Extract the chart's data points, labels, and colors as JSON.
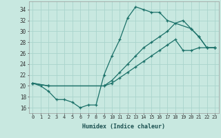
{
  "xlabel": "Humidex (Indice chaleur)",
  "bg_color": "#c8e8e0",
  "grid_color": "#aad4cc",
  "line_color": "#1a7068",
  "xlim": [
    -0.5,
    23.5
  ],
  "ylim": [
    15.0,
    35.5
  ],
  "xticks": [
    0,
    1,
    2,
    3,
    4,
    5,
    6,
    7,
    8,
    9,
    10,
    11,
    12,
    13,
    14,
    15,
    16,
    17,
    18,
    19,
    20,
    21,
    22,
    23
  ],
  "yticks": [
    16,
    18,
    20,
    22,
    24,
    26,
    28,
    30,
    32,
    34
  ],
  "line1_x": [
    0,
    1,
    2,
    3,
    4,
    5,
    6,
    7,
    8,
    9,
    10,
    11,
    12,
    13,
    14,
    15,
    16,
    17,
    20,
    21,
    22,
    23
  ],
  "line1_y": [
    20.5,
    20.0,
    19.0,
    17.5,
    17.5,
    17.0,
    16.0,
    16.5,
    16.5,
    22.0,
    25.5,
    28.5,
    32.5,
    34.5,
    34.0,
    33.5,
    33.5,
    32.0,
    30.5,
    29.0,
    27.0,
    27.0
  ],
  "line2_x": [
    0,
    2,
    9,
    10,
    11,
    12,
    13,
    14,
    15,
    16,
    17,
    18,
    19,
    20,
    21,
    22,
    23
  ],
  "line2_y": [
    20.5,
    20.0,
    20.0,
    21.0,
    22.5,
    24.0,
    25.5,
    27.0,
    28.0,
    29.0,
    30.0,
    31.5,
    32.0,
    30.5,
    29.0,
    27.0,
    27.0
  ],
  "line3_x": [
    0,
    2,
    9,
    10,
    11,
    12,
    13,
    14,
    15,
    16,
    17,
    18,
    19,
    20,
    21,
    22,
    23
  ],
  "line3_y": [
    20.5,
    20.0,
    20.0,
    20.5,
    21.5,
    22.5,
    23.5,
    24.5,
    25.5,
    26.5,
    27.5,
    28.5,
    26.5,
    26.5,
    27.0,
    27.0,
    27.0
  ]
}
